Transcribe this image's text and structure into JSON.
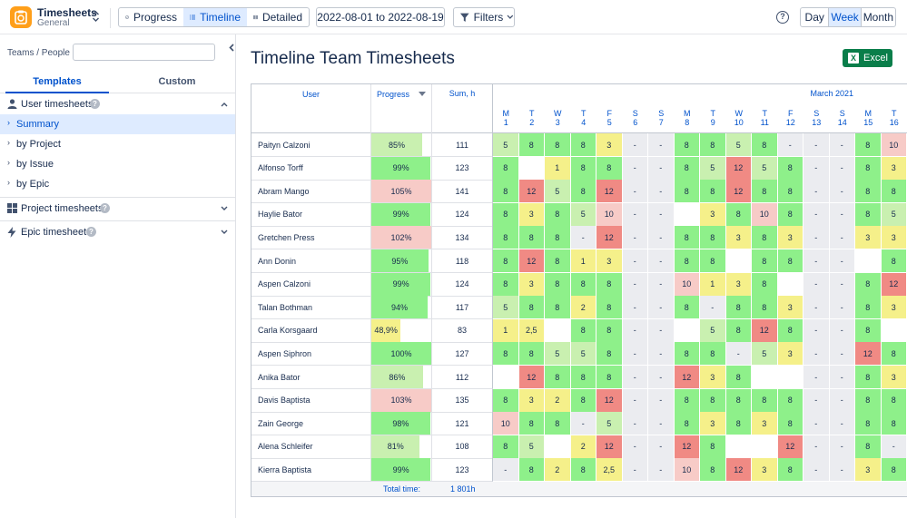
{
  "app": {
    "title": "Timesheets",
    "subtitle": "General"
  },
  "views": [
    {
      "label": "Progress",
      "icon": "progress-icon"
    },
    {
      "label": "Timeline",
      "icon": "list-icon"
    },
    {
      "label": "Detailed",
      "icon": "grid-icon"
    }
  ],
  "active_view": "Timeline",
  "date_range": "2022-08-01 to 2022-08-19",
  "filters_label": "Filters",
  "periods": [
    "Day",
    "Week",
    "Month"
  ],
  "active_period": "Week",
  "sidebar": {
    "teams_label": "Teams / People",
    "teams_placeholder": "",
    "tabs": [
      "Templates",
      "Custom"
    ],
    "sections": {
      "user": "User timesheets",
      "project": "Project timesheets",
      "epic": "Epic timesheets"
    },
    "items": [
      "Summary",
      "by Project",
      "by Issue",
      "by Epic"
    ]
  },
  "page_title": "Timeline Team Timesheets",
  "excel_label": "Excel",
  "table": {
    "headers": {
      "user": "User",
      "progress": "Progress",
      "sum": "Sum, h"
    },
    "month_label": "March 2021",
    "days": [
      {
        "d": "M",
        "n": "1",
        "weekend": false
      },
      {
        "d": "T",
        "n": "2",
        "weekend": false
      },
      {
        "d": "W",
        "n": "3",
        "weekend": false
      },
      {
        "d": "T",
        "n": "4",
        "weekend": false
      },
      {
        "d": "F",
        "n": "5",
        "weekend": false
      },
      {
        "d": "S",
        "n": "6",
        "weekend": true
      },
      {
        "d": "S",
        "n": "7",
        "weekend": true
      },
      {
        "d": "M",
        "n": "8",
        "weekend": false
      },
      {
        "d": "T",
        "n": "9",
        "weekend": false
      },
      {
        "d": "W",
        "n": "10",
        "weekend": false
      },
      {
        "d": "T",
        "n": "11",
        "weekend": false
      },
      {
        "d": "F",
        "n": "12",
        "weekend": false
      },
      {
        "d": "S",
        "n": "13",
        "weekend": true
      },
      {
        "d": "S",
        "n": "14",
        "weekend": true
      },
      {
        "d": "M",
        "n": "15",
        "weekend": false
      },
      {
        "d": "T",
        "n": "16",
        "weekend": false
      }
    ],
    "rows": [
      {
        "user": "Paityn Calzoni",
        "progress": "85%",
        "pct": 85,
        "sum": "111",
        "cells": [
          "5",
          "8",
          "8",
          "8",
          "3",
          "-",
          "-",
          "8",
          "8",
          "5",
          "8",
          "-",
          "-",
          "-",
          "8",
          "10"
        ]
      },
      {
        "user": "Alfonso Torff",
        "progress": "99%",
        "pct": 99,
        "sum": "123",
        "cells": [
          "8",
          "",
          "1",
          "8",
          "8",
          "-",
          "-",
          "8",
          "5",
          "12",
          "5",
          "8",
          "-",
          "-",
          "8",
          "3"
        ]
      },
      {
        "user": "Abram Mango",
        "progress": "105%",
        "pct": 105,
        "sum": "141",
        "cells": [
          "8",
          "12",
          "5",
          "8",
          "12",
          "-",
          "-",
          "8",
          "8",
          "12",
          "8",
          "8",
          "-",
          "-",
          "8",
          "8"
        ]
      },
      {
        "user": "Haylie Bator",
        "progress": "99%",
        "pct": 99,
        "sum": "124",
        "cells": [
          "8",
          "3",
          "8",
          "5",
          "10",
          "-",
          "-",
          "",
          "3",
          "8",
          "10",
          "8",
          "-",
          "-",
          "8",
          "5"
        ]
      },
      {
        "user": "Gretchen Press",
        "progress": "102%",
        "pct": 102,
        "sum": "134",
        "cells": [
          "8",
          "8",
          "8",
          "-",
          "12",
          "-",
          "-",
          "8",
          "8",
          "3",
          "8",
          "3",
          "-",
          "-",
          "3",
          "3"
        ]
      },
      {
        "user": "Ann Donin",
        "progress": "95%",
        "pct": 95,
        "sum": "118",
        "cells": [
          "8",
          "12",
          "8",
          "1",
          "3",
          "-",
          "-",
          "8",
          "8",
          "",
          "8",
          "8",
          "-",
          "-",
          "",
          "8"
        ]
      },
      {
        "user": "Aspen Calzoni",
        "progress": "99%",
        "pct": 99,
        "sum": "124",
        "cells": [
          "8",
          "3",
          "8",
          "8",
          "8",
          "-",
          "-",
          "10",
          "1",
          "3",
          "8",
          "",
          "-",
          "-",
          "8",
          "12"
        ]
      },
      {
        "user": "Talan Bothman",
        "progress": "94%",
        "pct": 94,
        "sum": "117",
        "cells": [
          "5",
          "8",
          "8",
          "2",
          "8",
          "-",
          "-",
          "8",
          "-",
          "8",
          "8",
          "3",
          "-",
          "-",
          "8",
          "3"
        ]
      },
      {
        "user": "Carla Korsgaard",
        "progress": "48,9%",
        "pct": 48.9,
        "sum": "83",
        "cells": [
          "1",
          "2,5",
          "",
          "8",
          "8",
          "-",
          "-",
          "",
          "5",
          "8",
          "12",
          "8",
          "-",
          "-",
          "8",
          ""
        ]
      },
      {
        "user": "Aspen Siphron",
        "progress": "100%",
        "pct": 100,
        "sum": "127",
        "cells": [
          "8",
          "8",
          "5",
          "5",
          "8",
          "-",
          "-",
          "8",
          "8",
          "-",
          "5",
          "3",
          "-",
          "-",
          "12",
          "8"
        ]
      },
      {
        "user": "Anika Bator",
        "progress": "86%",
        "pct": 86,
        "sum": "112",
        "cells": [
          "",
          "12",
          "8",
          "8",
          "8",
          "-",
          "-",
          "12",
          "3",
          "8",
          "",
          "",
          "-",
          "-",
          "8",
          "3"
        ]
      },
      {
        "user": "Davis Baptista",
        "progress": "103%",
        "pct": 103,
        "sum": "135",
        "cells": [
          "8",
          "3",
          "2",
          "8",
          "12",
          "-",
          "-",
          "8",
          "8",
          "8",
          "8",
          "8",
          "-",
          "-",
          "8",
          "8"
        ]
      },
      {
        "user": "Zain George",
        "progress": "98%",
        "pct": 98,
        "sum": "121",
        "cells": [
          "10",
          "8",
          "8",
          "-",
          "5",
          "-",
          "-",
          "8",
          "3",
          "8",
          "3",
          "8",
          "-",
          "-",
          "8",
          "8"
        ]
      },
      {
        "user": "Alena Schleifer",
        "progress": "81%",
        "pct": 81,
        "sum": "108",
        "cells": [
          "8",
          "5",
          "",
          "2",
          "12",
          "-",
          "-",
          "12",
          "8",
          "",
          "",
          "12",
          "-",
          "-",
          "8",
          "-"
        ]
      },
      {
        "user": "Kierra Baptista",
        "progress": "99%",
        "pct": 99,
        "sum": "123",
        "cells": [
          "-",
          "8",
          "2",
          "8",
          "2,5",
          "-",
          "-",
          "10",
          "8",
          "12",
          "3",
          "8",
          "-",
          "-",
          "3",
          "8"
        ]
      }
    ],
    "footer": {
      "label": "Total time:",
      "total": "1 801h"
    }
  },
  "colors": {
    "accent": "#0052cc",
    "excel": "#0a7e4a",
    "logo": "#ff9f1a",
    "green": "#8ef08a",
    "light_green": "#c9f0b0",
    "yellow": "#f5f08a",
    "red": "#f08a84",
    "pink": "#f7cbc7",
    "purple": "#c7b8f5",
    "blue": "#c5d9f7",
    "weekend": "#ebecf0"
  }
}
